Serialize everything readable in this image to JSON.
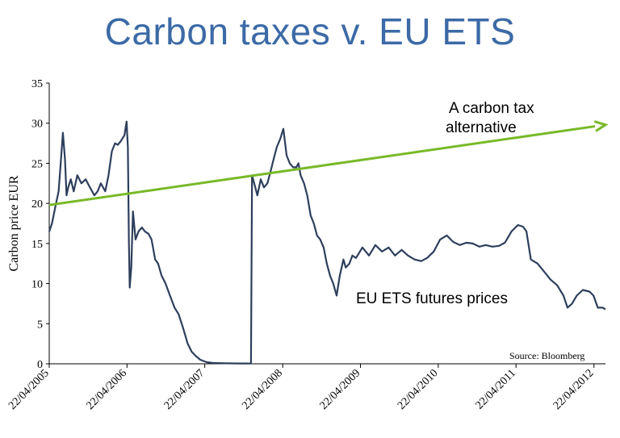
{
  "page_title": "Carbon taxes v. EU ETS",
  "chart_data": {
    "type": "line",
    "title": "Carbon taxes v. EU ETS",
    "ylabel": "Carbon price EUR",
    "xlabel": "",
    "ylim": [
      0,
      35
    ],
    "yticks": [
      0,
      5,
      10,
      15,
      20,
      25,
      30,
      35
    ],
    "xlim": [
      "2005-04-22",
      "2012-06-15"
    ],
    "xticks": [
      "22/04/2005",
      "22/04/2006",
      "22/04/2007",
      "22/04/2008",
      "22/04/2009",
      "22/04/2010",
      "22/04/2011",
      "22/04/2012"
    ],
    "grid": false,
    "colors": {
      "line": "#2e3f5c",
      "arrow": "#78b928",
      "title": "#3c6aa6"
    },
    "series": [
      {
        "name": "EU ETS futures prices",
        "x": [
          "2005-04-22",
          "2005-05-05",
          "2005-05-20",
          "2005-06-05",
          "2005-06-15",
          "2005-06-25",
          "2005-07-05",
          "2005-07-12",
          "2005-07-20",
          "2005-08-01",
          "2005-08-15",
          "2005-09-01",
          "2005-09-20",
          "2005-10-10",
          "2005-10-30",
          "2005-11-20",
          "2005-12-05",
          "2005-12-20",
          "2006-01-10",
          "2006-01-25",
          "2006-02-10",
          "2006-02-25",
          "2006-03-10",
          "2006-03-25",
          "2006-04-10",
          "2006-04-20",
          "2006-04-26",
          "2006-05-01",
          "2006-05-05",
          "2006-05-12",
          "2006-05-20",
          "2006-06-01",
          "2006-06-15",
          "2006-07-01",
          "2006-07-15",
          "2006-08-01",
          "2006-08-15",
          "2006-09-01",
          "2006-09-15",
          "2006-10-01",
          "2006-10-20",
          "2006-11-10",
          "2006-12-01",
          "2006-12-20",
          "2007-01-10",
          "2007-02-01",
          "2007-02-20",
          "2007-03-10",
          "2007-04-01",
          "2007-05-01",
          "2007-06-01",
          "2007-07-01",
          "2007-08-01",
          "2007-09-01",
          "2007-10-01",
          "2007-11-01",
          "2007-11-25",
          "2007-11-30",
          "2007-12-10",
          "2007-12-25",
          "2008-01-10",
          "2008-01-25",
          "2008-02-10",
          "2008-02-25",
          "2008-03-10",
          "2008-03-25",
          "2008-04-10",
          "2008-04-25",
          "2008-05-10",
          "2008-05-25",
          "2008-06-10",
          "2008-06-25",
          "2008-07-05",
          "2008-07-15",
          "2008-07-31",
          "2008-08-15",
          "2008-08-31",
          "2008-09-15",
          "2008-09-30",
          "2008-10-15",
          "2008-10-31",
          "2008-11-15",
          "2008-11-30",
          "2008-12-15",
          "2008-12-31",
          "2009-01-15",
          "2009-02-01",
          "2009-02-12",
          "2009-03-01",
          "2009-03-15",
          "2009-04-01",
          "2009-05-01",
          "2009-06-01",
          "2009-07-01",
          "2009-08-01",
          "2009-09-01",
          "2009-10-01",
          "2009-11-01",
          "2009-12-01",
          "2010-01-01",
          "2010-02-01",
          "2010-03-01",
          "2010-04-01",
          "2010-05-01",
          "2010-06-01",
          "2010-07-01",
          "2010-08-01",
          "2010-09-01",
          "2010-10-01",
          "2010-11-01",
          "2010-12-01",
          "2011-01-01",
          "2011-02-01",
          "2011-03-01",
          "2011-04-01",
          "2011-05-01",
          "2011-05-25",
          "2011-06-10",
          "2011-07-01",
          "2011-08-01",
          "2011-09-01",
          "2011-10-01",
          "2011-11-01",
          "2011-12-01",
          "2011-12-20",
          "2012-01-10",
          "2012-02-01",
          "2012-03-01",
          "2012-04-01",
          "2012-04-20",
          "2012-05-10",
          "2012-06-01",
          "2012-06-15"
        ],
        "y": [
          16.5,
          17.5,
          19.5,
          21.5,
          25,
          28.8,
          25.5,
          21,
          22,
          23,
          21.5,
          23.5,
          22.5,
          23,
          22,
          21,
          21.5,
          22.5,
          21.5,
          23.5,
          26.5,
          27.5,
          27.3,
          27.8,
          28.5,
          30.2,
          27,
          15,
          9.5,
          12,
          19,
          15.5,
          16.5,
          17,
          16.5,
          16.2,
          15.5,
          13,
          12.5,
          11,
          10,
          8.5,
          7,
          6.2,
          4.5,
          2.5,
          1.5,
          1,
          0.5,
          0.2,
          0.1,
          0.08,
          0.06,
          0.05,
          0.04,
          0.04,
          0.03,
          23.5,
          22.5,
          21,
          23,
          22,
          22.5,
          24,
          25.5,
          27,
          28,
          29.3,
          26,
          25,
          24.5,
          24.5,
          25,
          23.5,
          22.5,
          21,
          18.5,
          17.5,
          16,
          15.5,
          14.5,
          12.5,
          11,
          10,
          8.5,
          11,
          13,
          12,
          12.5,
          13.5,
          13.2,
          14.5,
          13.5,
          14.8,
          14,
          14.5,
          13.5,
          14.2,
          13.5,
          13,
          12.8,
          13.2,
          14,
          15.5,
          16,
          15.2,
          14.8,
          15.1,
          15,
          14.6,
          14.8,
          14.6,
          14.7,
          15.1,
          16.5,
          17.3,
          17.1,
          16.5,
          13,
          12.5,
          11.5,
          10.5,
          9.8,
          8.5,
          7,
          7.5,
          8.5,
          9.2,
          9,
          8.5,
          7,
          7,
          6.8
        ]
      }
    ],
    "annotations": {
      "arrow_label_line1": "A carbon tax",
      "arrow_label_line2": "alternative",
      "series_label": "EU ETS futures prices",
      "source": "Source: Bloomberg",
      "arrow_start": {
        "x": "2005-04-22",
        "y": 19.8
      },
      "arrow_end": {
        "x": "2012-06-15",
        "y": 29.8
      }
    }
  }
}
